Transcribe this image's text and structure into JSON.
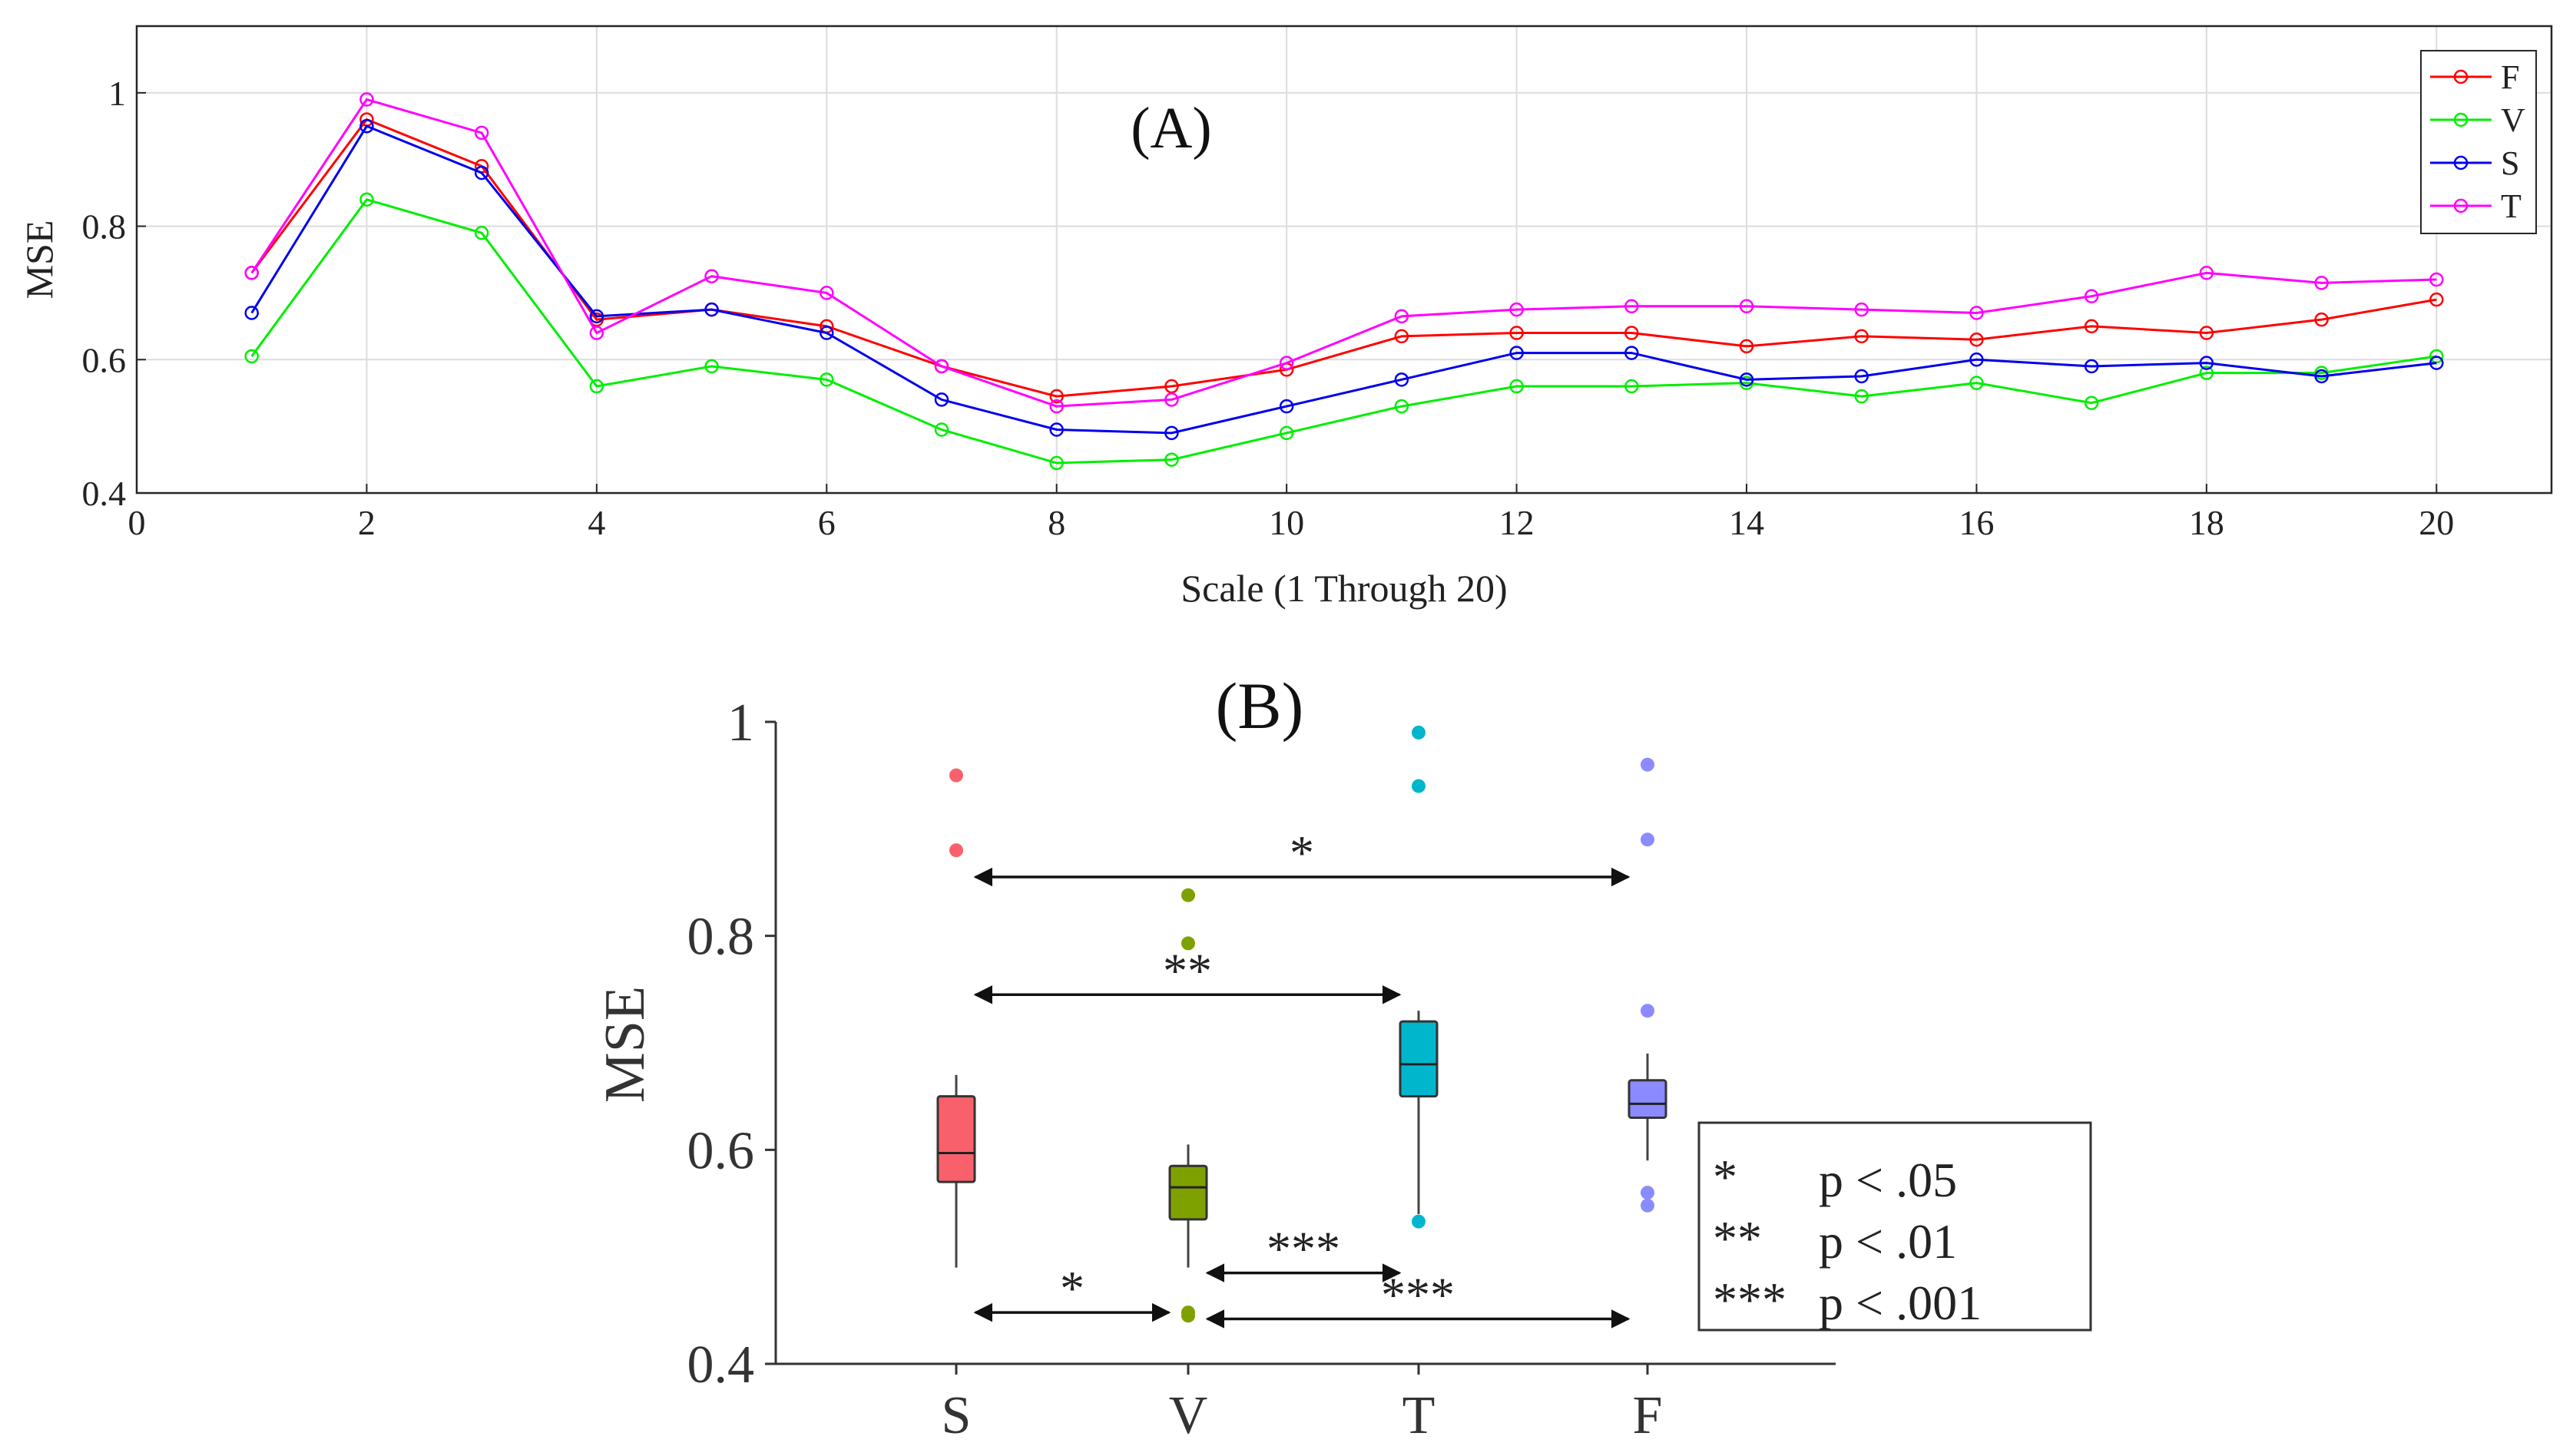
{
  "chart_data": [
    {
      "type": "line",
      "title": "(A)",
      "xlabel": "Scale (1 Through 20)",
      "ylabel": "MSE",
      "xlim": [
        0,
        21
      ],
      "ylim": [
        0.4,
        1.1
      ],
      "xticks": [
        0,
        2,
        4,
        6,
        8,
        10,
        12,
        14,
        16,
        18,
        20
      ],
      "yticks": [
        0.4,
        0.6,
        0.8,
        1
      ],
      "xtick_labels": [
        "0",
        "2",
        "4",
        "6",
        "8",
        "10",
        "12",
        "14",
        "16",
        "18",
        "20"
      ],
      "ytick_labels": [
        "0.4",
        "0.6",
        "0.8",
        "1"
      ],
      "grid": true,
      "legend_position": "top-right",
      "x": [
        1,
        2,
        3,
        4,
        5,
        6,
        7,
        8,
        9,
        10,
        11,
        12,
        13,
        14,
        15,
        16,
        17,
        18,
        19,
        20
      ],
      "series": [
        {
          "name": "F",
          "color": "#ff0000",
          "values": [
            0.73,
            0.96,
            0.89,
            0.66,
            0.675,
            0.65,
            0.59,
            0.545,
            0.56,
            0.585,
            0.635,
            0.64,
            0.64,
            0.62,
            0.635,
            0.63,
            0.65,
            0.64,
            0.66,
            0.69
          ]
        },
        {
          "name": "V",
          "color": "#00ee00",
          "values": [
            0.605,
            0.84,
            0.79,
            0.56,
            0.59,
            0.57,
            0.495,
            0.445,
            0.45,
            0.49,
            0.53,
            0.56,
            0.56,
            0.565,
            0.545,
            0.565,
            0.535,
            0.58,
            0.58,
            0.605
          ]
        },
        {
          "name": "S",
          "color": "#0000ee",
          "values": [
            0.67,
            0.95,
            0.88,
            0.665,
            0.675,
            0.64,
            0.54,
            0.495,
            0.49,
            0.53,
            0.57,
            0.61,
            0.61,
            0.57,
            0.575,
            0.6,
            0.59,
            0.595,
            0.575,
            0.595
          ]
        },
        {
          "name": "T",
          "color": "#ff00ff",
          "values": [
            0.73,
            0.99,
            0.94,
            0.64,
            0.725,
            0.7,
            0.59,
            0.53,
            0.54,
            0.595,
            0.665,
            0.675,
            0.68,
            0.68,
            0.675,
            0.67,
            0.695,
            0.73,
            0.715,
            0.72
          ]
        }
      ]
    },
    {
      "type": "box",
      "title": "(B)",
      "xlabel": "",
      "ylabel": "MSE",
      "ylim": [
        0.4,
        1.0
      ],
      "yticks": [
        0.4,
        0.6,
        0.8,
        1
      ],
      "ytick_labels": [
        "0.4",
        "0.6",
        "0.8",
        "1"
      ],
      "categories": [
        "S",
        "V",
        "T",
        "F"
      ],
      "boxes": [
        {
          "name": "S",
          "color": "#f8616c",
          "whisker_low": 0.49,
          "q1": 0.57,
          "median": 0.597,
          "q3": 0.65,
          "whisker_high": 0.67,
          "outliers": [
            0.88,
            0.95
          ]
        },
        {
          "name": "V",
          "color": "#7fa100",
          "whisker_low": 0.49,
          "q1": 0.535,
          "median": 0.565,
          "q3": 0.585,
          "whisker_high": 0.605,
          "outliers": [
            0.445,
            0.448,
            0.793,
            0.838
          ]
        },
        {
          "name": "T",
          "color": "#00b6cc",
          "whisker_low": 0.54,
          "q1": 0.65,
          "median": 0.68,
          "q3": 0.72,
          "whisker_high": 0.73,
          "outliers": [
            0.533,
            0.94,
            0.99
          ]
        },
        {
          "name": "F",
          "color": "#8b8bff",
          "whisker_low": 0.59,
          "q1": 0.63,
          "median": 0.643,
          "q3": 0.665,
          "whisker_high": 0.69,
          "outliers": [
            0.548,
            0.56,
            0.73,
            0.89,
            0.96
          ]
        }
      ],
      "significance": [
        {
          "from": "S",
          "to": "F",
          "label": "*",
          "y": 0.855
        },
        {
          "from": "S",
          "to": "T",
          "label": "**",
          "y": 0.745
        },
        {
          "from": "S",
          "to": "V",
          "label": "*",
          "y": 0.448
        },
        {
          "from": "V",
          "to": "T",
          "label": "***",
          "y": 0.485
        },
        {
          "from": "V",
          "to": "F",
          "label": "***",
          "y": 0.442
        }
      ],
      "legend": [
        {
          "symbol": "*",
          "text": "p < .05"
        },
        {
          "symbol": "**",
          "text": "p < .01"
        },
        {
          "symbol": "***",
          "text": "p < .001"
        }
      ],
      "legend_position": "bottom-right"
    }
  ]
}
